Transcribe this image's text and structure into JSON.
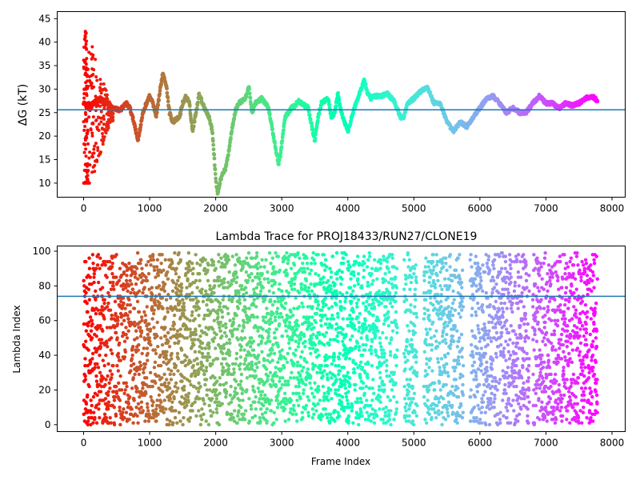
{
  "figure": {
    "background": "#ffffff"
  },
  "chart_data": [
    {
      "type": "scatter",
      "title": "",
      "xlabel": "",
      "ylabel": "ΔG (kT)",
      "xlim": [
        -400,
        8200
      ],
      "ylim": [
        7,
        46.5
      ],
      "xticks": [
        0,
        1000,
        2000,
        3000,
        4000,
        5000,
        6000,
        7000,
        8000
      ],
      "xtick_labels": [
        "0",
        "1000",
        "2000",
        "3000",
        "4000",
        "5000",
        "6000",
        "7000",
        "8000"
      ],
      "yticks": [
        10,
        15,
        20,
        25,
        30,
        35,
        40,
        45
      ],
      "ytick_labels": [
        "10",
        "15",
        "20",
        "25",
        "30",
        "35",
        "40",
        "45"
      ],
      "grid": false,
      "colormap": "rainbow (red at frame 0 to purple at the last frame)",
      "hline": {
        "y": 25.6,
        "color": "#1f77b4"
      },
      "n_frames": 7780,
      "trace_keypoints": {
        "x": [
          0,
          80,
          150,
          250,
          350,
          450,
          550,
          650,
          700,
          780,
          820,
          900,
          950,
          1000,
          1050,
          1100,
          1150,
          1200,
          1250,
          1300,
          1350,
          1450,
          1500,
          1550,
          1600,
          1650,
          1700,
          1750,
          1800,
          1900,
          1950,
          2000,
          2030,
          2060,
          2100,
          2150,
          2200,
          2250,
          2300,
          2350,
          2450,
          2500,
          2550,
          2600,
          2700,
          2800,
          2900,
          2950,
          2980,
          3050,
          3150,
          3200,
          3250,
          3300,
          3400,
          3500,
          3550,
          3600,
          3700,
          3750,
          3800,
          3850,
          3900,
          4000,
          4100,
          4200,
          4250,
          4300,
          4350,
          4400,
          4500,
          4600,
          4700,
          4800,
          4850,
          4900,
          5000,
          5100,
          5200,
          5250,
          5300,
          5400,
          5500,
          5600,
          5700,
          5800,
          5900,
          6000,
          6100,
          6200,
          6300,
          6400,
          6500,
          6600,
          6700,
          6800,
          6900,
          7000,
          7100,
          7200,
          7300,
          7400,
          7500,
          7600,
          7700,
          7780
        ],
        "y": [
          27,
          26,
          27,
          28,
          27,
          26,
          25.5,
          27,
          26,
          22,
          19,
          25,
          27,
          28.5,
          27,
          24,
          29,
          33.5,
          31,
          25,
          23,
          24,
          27,
          28.5,
          27,
          21,
          25,
          29,
          27,
          24,
          21,
          11,
          7.5,
          10,
          12,
          13,
          17,
          22,
          25.5,
          27,
          28,
          30.5,
          25,
          27,
          28,
          26,
          18,
          14,
          16,
          24,
          26,
          26.5,
          27.5,
          27,
          26,
          19,
          24,
          27,
          28,
          24,
          25,
          29,
          25,
          21,
          26,
          30,
          32,
          29,
          28,
          28.5,
          28.5,
          29,
          27.5,
          24,
          24,
          27,
          28,
          29.5,
          30.5,
          29,
          27,
          27,
          23,
          21,
          23,
          22,
          24,
          26,
          28,
          28.5,
          27,
          25,
          26,
          25,
          25,
          27,
          28.5,
          27,
          27,
          26,
          27,
          26.5,
          27,
          28,
          28.5,
          27.5
        ]
      },
      "initial_scatter_range": {
        "x_range": [
          0,
          450
        ],
        "y_range": [
          10,
          46
        ]
      }
    },
    {
      "type": "scatter",
      "title": "Lambda Trace for PROJ18433/RUN27/CLONE19",
      "xlabel": "Frame Index",
      "ylabel": "Lambda Index",
      "xlim": [
        -400,
        8200
      ],
      "ylim": [
        -4,
        103
      ],
      "xticks": [
        0,
        1000,
        2000,
        3000,
        4000,
        5000,
        6000,
        7000,
        8000
      ],
      "xtick_labels": [
        "0",
        "1000",
        "2000",
        "3000",
        "4000",
        "5000",
        "6000",
        "7000",
        "8000"
      ],
      "yticks": [
        0,
        20,
        40,
        60,
        80,
        100
      ],
      "ytick_labels": [
        "0",
        "20",
        "40",
        "60",
        "80",
        "100"
      ],
      "grid": false,
      "colormap": "rainbow (red at frame 0 to purple at the last frame)",
      "hline": {
        "y": 74,
        "color": "#1f77b4"
      },
      "n_frames": 7780,
      "value_range": [
        0,
        99
      ],
      "empty_gaps": [
        [
          4750,
          4850
        ],
        [
          5050,
          5150
        ],
        [
          5750,
          5850
        ],
        [
          6750,
          6800
        ]
      ]
    }
  ]
}
